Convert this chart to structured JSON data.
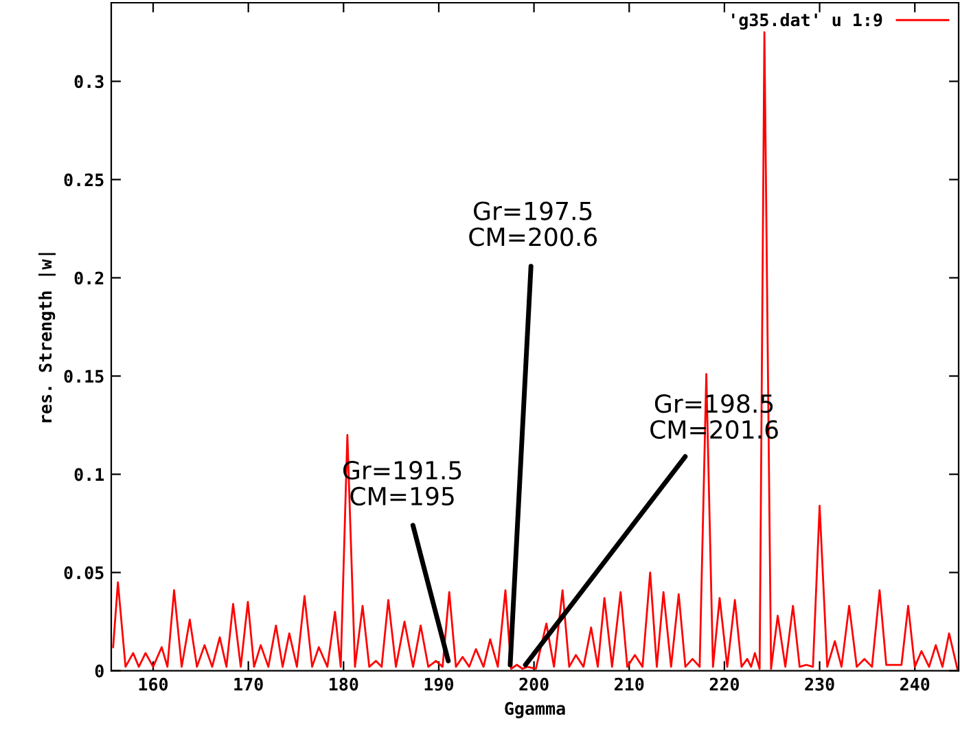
{
  "chart_data": {
    "type": "line",
    "xlabel": "Ggamma",
    "ylabel": "res. Strength |w|",
    "xlim": [
      155.6,
      244.6
    ],
    "xticks": [
      160,
      170,
      180,
      190,
      200,
      210,
      220,
      230,
      240
    ],
    "ylim": [
      0,
      0.34
    ],
    "yticks": [
      0,
      0.05,
      0.1,
      0.15,
      0.2,
      0.25,
      0.3
    ],
    "grid": false,
    "legend": "top right",
    "marker": "none",
    "line_style": "solid",
    "series": [
      {
        "name": "'g35.dat' u 1:9",
        "color": "#ff0000",
        "x": [
          155.8,
          156.3,
          157.1,
          157.9,
          158.5,
          159.2,
          160.0,
          160.9,
          161.5,
          162.2,
          163.0,
          163.85,
          164.6,
          165.4,
          166.2,
          167.0,
          167.7,
          168.4,
          169.2,
          169.95,
          170.6,
          171.3,
          172.1,
          172.9,
          173.6,
          174.3,
          175.1,
          175.9,
          176.7,
          177.4,
          178.3,
          179.1,
          179.7,
          180.4,
          181.2,
          182.0,
          182.7,
          183.4,
          184.0,
          184.7,
          185.5,
          186.4,
          187.3,
          188.1,
          188.9,
          189.7,
          190.4,
          191.1,
          191.8,
          192.5,
          193.2,
          193.9,
          194.7,
          195.4,
          196.2,
          197.0,
          197.6,
          198.2,
          198.8,
          199.3,
          200.2,
          201.3,
          202.1,
          203.0,
          203.7,
          204.4,
          205.2,
          206.0,
          206.7,
          207.4,
          208.2,
          209.1,
          209.8,
          210.6,
          211.4,
          212.2,
          212.9,
          213.6,
          214.4,
          215.2,
          215.9,
          216.65,
          217.4,
          218.1,
          218.8,
          219.5,
          220.3,
          221.1,
          221.8,
          222.4,
          222.8,
          223.2,
          223.7,
          224.2,
          224.9,
          225.6,
          226.4,
          227.2,
          227.9,
          228.6,
          229.3,
          230.0,
          230.8,
          231.6,
          232.3,
          233.1,
          233.9,
          234.7,
          235.5,
          236.3,
          237.0,
          237.8,
          238.6,
          239.3,
          240.0,
          240.7,
          241.5,
          242.2,
          242.9,
          243.6,
          244.5
        ],
        "values": [
          0.012,
          0.045,
          0.002,
          0.009,
          0.002,
          0.009,
          0.002,
          0.012,
          0.002,
          0.041,
          0.002,
          0.026,
          0.002,
          0.013,
          0.002,
          0.017,
          0.002,
          0.034,
          0.002,
          0.035,
          0.002,
          0.013,
          0.002,
          0.023,
          0.002,
          0.019,
          0.002,
          0.038,
          0.002,
          0.012,
          0.002,
          0.03,
          0.002,
          0.12,
          0.002,
          0.033,
          0.002,
          0.005,
          0.002,
          0.036,
          0.002,
          0.025,
          0.002,
          0.023,
          0.002,
          0.005,
          0.002,
          0.04,
          0.002,
          0.007,
          0.002,
          0.011,
          0.002,
          0.016,
          0.002,
          0.041,
          0.001,
          0.003,
          0.001,
          0.002,
          0.001,
          0.024,
          0.002,
          0.041,
          0.002,
          0.008,
          0.002,
          0.022,
          0.002,
          0.037,
          0.002,
          0.04,
          0.002,
          0.008,
          0.002,
          0.05,
          0.002,
          0.04,
          0.002,
          0.039,
          0.002,
          0.006,
          0.002,
          0.151,
          0.002,
          0.037,
          0.002,
          0.036,
          0.002,
          0.006,
          0.002,
          0.009,
          0.001,
          0.325,
          0.001,
          0.028,
          0.002,
          0.033,
          0.002,
          0.003,
          0.002,
          0.084,
          0.002,
          0.015,
          0.002,
          0.033,
          0.002,
          0.006,
          0.002,
          0.041,
          0.003,
          0.003,
          0.003,
          0.033,
          0.002,
          0.01,
          0.002,
          0.013,
          0.002,
          0.019,
          0.0003
        ]
      }
    ],
    "annotations": [
      {
        "text": "Gr=191.5\nCM=195",
        "x": 191.0,
        "y": 0.005
      },
      {
        "text": "Gr=197.5\nCM=200.6",
        "x": 197.5,
        "y": 0.003
      },
      {
        "text": "Gr=198.5\nCM=201.6",
        "x": 199.1,
        "y": 0.003
      }
    ]
  }
}
